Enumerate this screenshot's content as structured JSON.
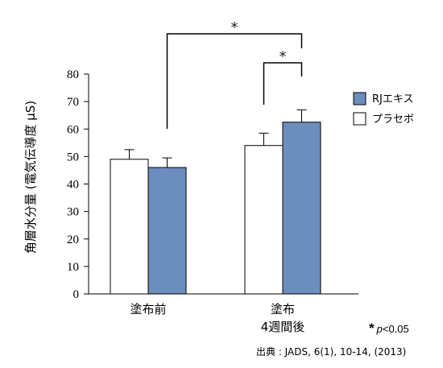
{
  "chart_data": {
    "type": "bar",
    "ylabel": "角層水分量 (電気伝導度 μS)",
    "ylim": [
      0,
      80
    ],
    "yticks": [
      0,
      10,
      20,
      30,
      40,
      50,
      60,
      70,
      80
    ],
    "categories": [
      {
        "lines": [
          "塗布前"
        ]
      },
      {
        "lines": [
          "塗布",
          "4週間後"
        ]
      }
    ],
    "series": [
      {
        "name": "プラセボ",
        "values": [
          49,
          54
        ],
        "errors": [
          3.5,
          4.5
        ],
        "color": "#ffffff"
      },
      {
        "name": "RJエキス",
        "values": [
          46,
          62.5
        ],
        "errors": [
          3.5,
          4.5
        ],
        "color": "#6c8ebf"
      }
    ],
    "legend_order": [
      "RJエキス",
      "プラセボ"
    ],
    "legend_position": "right",
    "significance_marker": "*",
    "significance_note": {
      "star": "*",
      "p": "p",
      "rest": "<0.05"
    },
    "source": "出典 : JADS, 6(1), 10-14, (2013)"
  }
}
